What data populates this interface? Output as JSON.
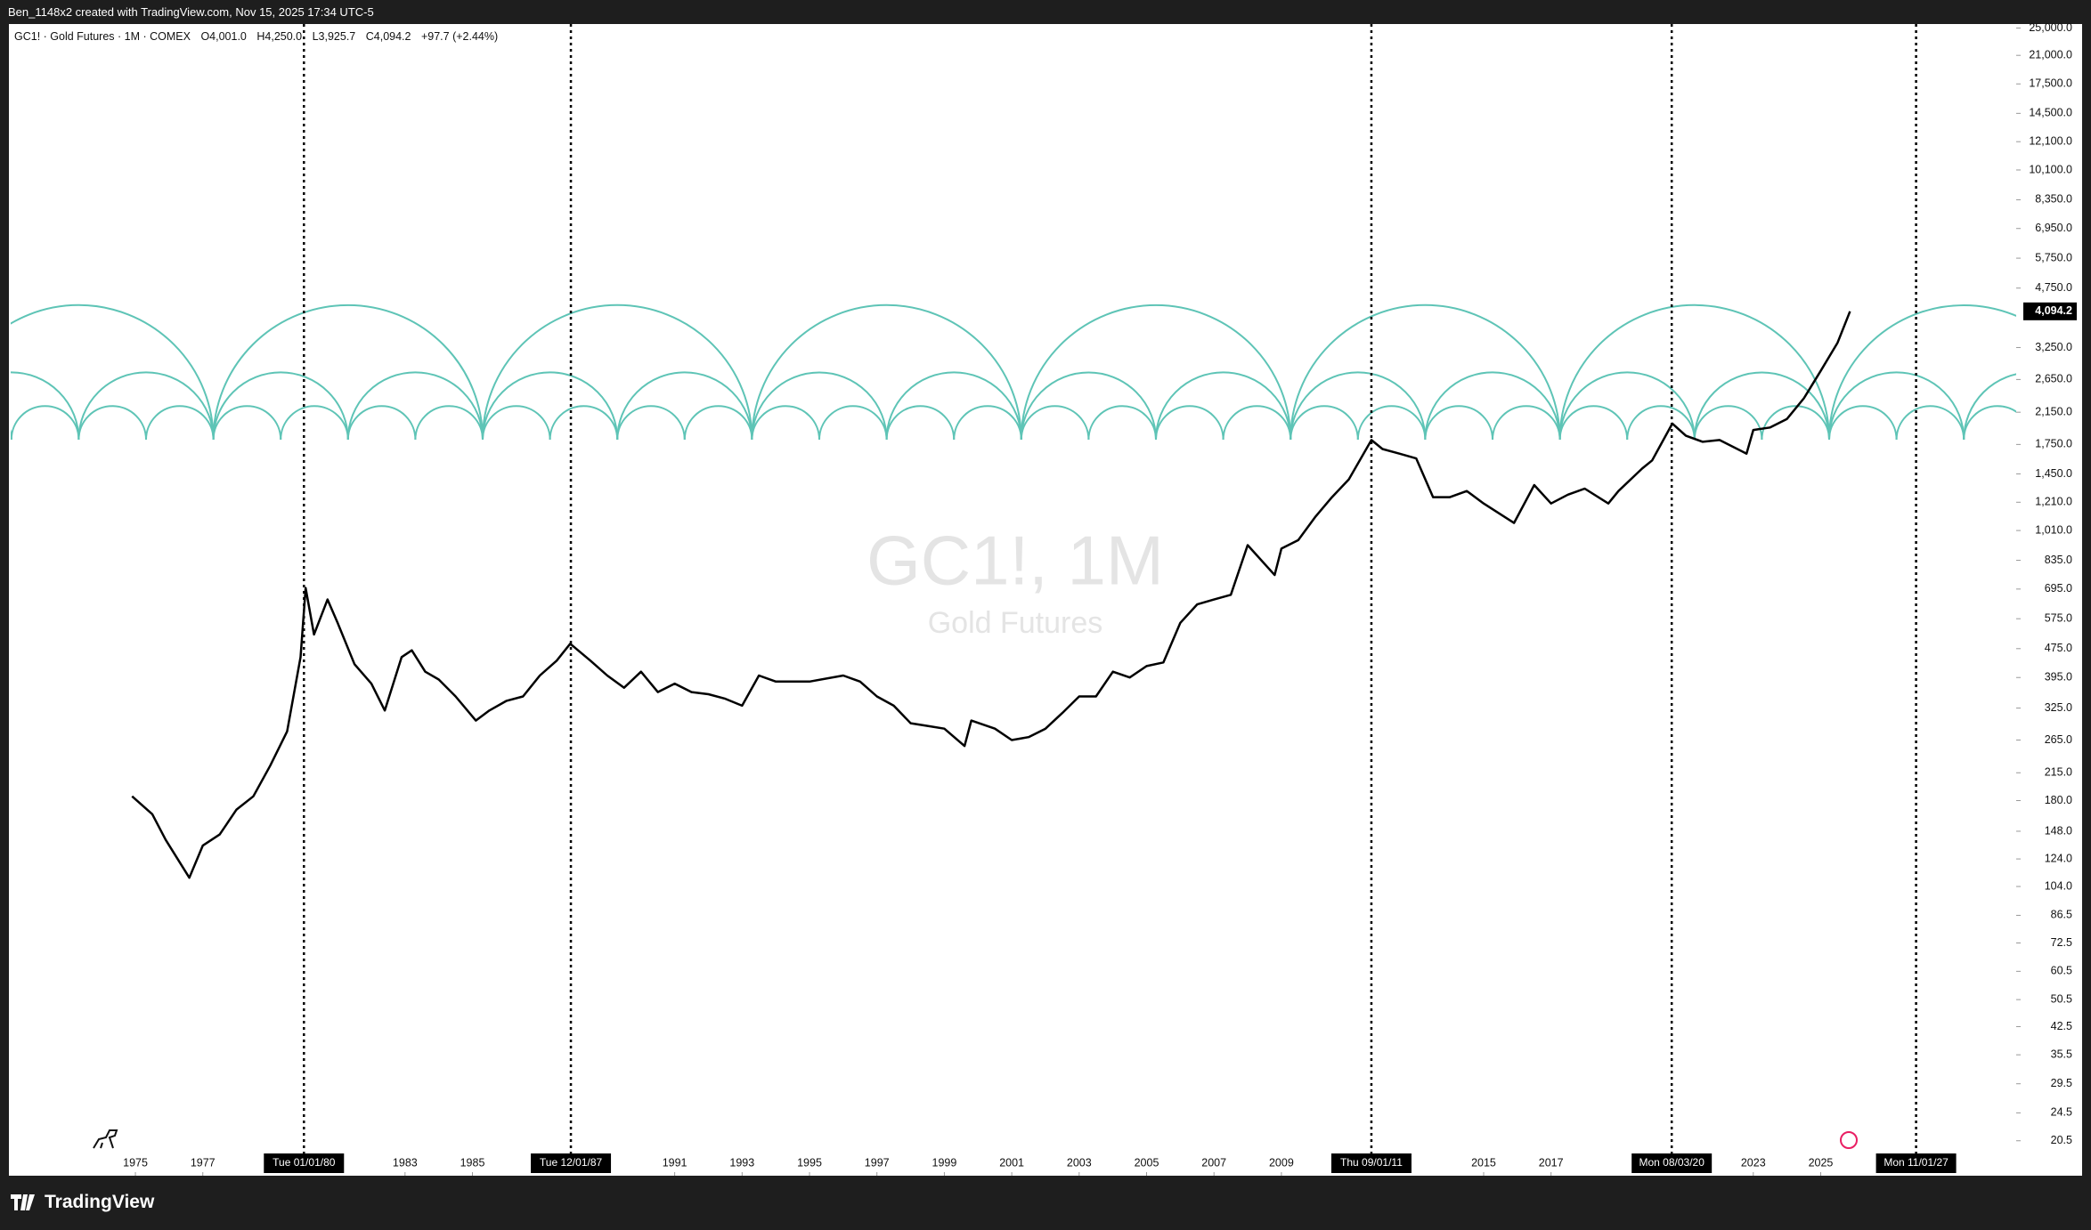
{
  "header": {
    "text": "Ben_1148x2 created with TradingView.com, Nov 15, 2025 17:34 UTC-5"
  },
  "legend": {
    "symbol": "GC1! · Gold Futures · 1M · COMEX",
    "open": "O4,001.0",
    "high": "H4,250.0",
    "low": "L3,925.7",
    "close": "C4,094.2",
    "change": "+97.7 (+2.44%)"
  },
  "footer": {
    "brand": "TradingView"
  },
  "chart_data": {
    "type": "line",
    "title": "GC1!, 1M",
    "subtitle": "Gold Futures",
    "log_scale": true,
    "color": "#000000",
    "x": [
      1974.9,
      1975.5,
      1975.9,
      1976.6,
      1977.0,
      1977.5,
      1978.0,
      1978.5,
      1979.0,
      1979.5,
      1979.9,
      1980.05,
      1980.3,
      1980.7,
      1981.0,
      1981.5,
      1982.0,
      1982.4,
      1982.9,
      1983.2,
      1983.6,
      1984.0,
      1984.5,
      1985.1,
      1985.5,
      1986.0,
      1986.5,
      1987.0,
      1987.5,
      1987.9,
      1988.5,
      1989.0,
      1989.5,
      1990.0,
      1990.5,
      1991.0,
      1991.5,
      1992.0,
      1992.5,
      1993.0,
      1993.5,
      1994.0,
      1995.0,
      1996.0,
      1996.5,
      1997.0,
      1997.5,
      1998.0,
      1998.5,
      1999.0,
      1999.6,
      1999.8,
      2000.5,
      2001.0,
      2001.5,
      2002.0,
      2002.5,
      2003.0,
      2003.5,
      2004.0,
      2004.5,
      2005.0,
      2005.5,
      2006.0,
      2006.5,
      2007.0,
      2007.5,
      2008.0,
      2008.8,
      2009.0,
      2009.5,
      2010.0,
      2010.5,
      2011.0,
      2011.67,
      2012.0,
      2012.5,
      2013.0,
      2013.5,
      2014.0,
      2014.5,
      2015.0,
      2015.9,
      2016.5,
      2017.0,
      2017.5,
      2018.0,
      2018.7,
      2019.0,
      2019.7,
      2020.0,
      2020.6,
      2021.0,
      2021.5,
      2022.0,
      2022.8,
      2023.0,
      2023.5,
      2024.0,
      2024.5,
      2025.0,
      2025.5,
      2025.87
    ],
    "values": [
      185,
      165,
      140,
      110,
      135,
      145,
      170,
      185,
      225,
      280,
      450,
      700,
      520,
      650,
      560,
      430,
      380,
      320,
      450,
      470,
      410,
      390,
      350,
      300,
      320,
      340,
      350,
      400,
      440,
      490,
      440,
      400,
      370,
      410,
      360,
      380,
      360,
      355,
      345,
      330,
      400,
      385,
      385,
      400,
      385,
      350,
      330,
      295,
      290,
      285,
      255,
      300,
      285,
      265,
      270,
      285,
      315,
      350,
      350,
      410,
      395,
      425,
      435,
      560,
      630,
      650,
      670,
      920,
      760,
      900,
      950,
      1100,
      1250,
      1400,
      1800,
      1700,
      1650,
      1600,
      1250,
      1250,
      1300,
      1200,
      1060,
      1350,
      1200,
      1270,
      1320,
      1200,
      1300,
      1500,
      1580,
      2000,
      1850,
      1780,
      1800,
      1650,
      1920,
      1950,
      2060,
      2350,
      2800,
      3350,
      4094.2
    ],
    "price_label": {
      "value": 4094.2,
      "label": "4,094.2"
    },
    "xlim": [
      1971.3,
      2030.8
    ],
    "xticks": [
      1975,
      1977,
      1983,
      1985,
      1991,
      1993,
      1995,
      1997,
      1999,
      2001,
      2003,
      2005,
      2007,
      2009,
      2015,
      2017,
      2023,
      2025
    ],
    "ylim": [
      16.4,
      25650
    ],
    "yticks": [
      {
        "value": 25000,
        "label": "25,000.0"
      },
      {
        "value": 21000,
        "label": "21,000.0"
      },
      {
        "value": 17500,
        "label": "17,500.0"
      },
      {
        "value": 14500,
        "label": "14,500.0"
      },
      {
        "value": 12100,
        "label": "12,100.0"
      },
      {
        "value": 10100,
        "label": "10,100.0"
      },
      {
        "value": 8350,
        "label": "8,350.0"
      },
      {
        "value": 6950,
        "label": "6,950.0"
      },
      {
        "value": 5750,
        "label": "5,750.0"
      },
      {
        "value": 4750,
        "label": "4,750.0"
      },
      {
        "value": 3250,
        "label": "3,250.0"
      },
      {
        "value": 2650,
        "label": "2,650.0"
      },
      {
        "value": 2150,
        "label": "2,150.0"
      },
      {
        "value": 1750,
        "label": "1,750.0"
      },
      {
        "value": 1450,
        "label": "1,450.0"
      },
      {
        "value": 1210,
        "label": "1,210.0"
      },
      {
        "value": 1010,
        "label": "1,010.0"
      },
      {
        "value": 835,
        "label": "835.0"
      },
      {
        "value": 695,
        "label": "695.0"
      },
      {
        "value": 575,
        "label": "575.0"
      },
      {
        "value": 475,
        "label": "475.0"
      },
      {
        "value": 395,
        "label": "395.0"
      },
      {
        "value": 325,
        "label": "325.0"
      },
      {
        "value": 265,
        "label": "265.0"
      },
      {
        "value": 215,
        "label": "215.0"
      },
      {
        "value": 180,
        "label": "180.0"
      },
      {
        "value": 148,
        "label": "148.0"
      },
      {
        "value": 124,
        "label": "124.0"
      },
      {
        "value": 104,
        "label": "104.0"
      },
      {
        "value": 86.5,
        "label": "86.5"
      },
      {
        "value": 72.5,
        "label": "72.5"
      },
      {
        "value": 60.5,
        "label": "60.5"
      },
      {
        "value": 50.5,
        "label": "50.5"
      },
      {
        "value": 42.5,
        "label": "42.5"
      },
      {
        "value": 35.5,
        "label": "35.5"
      },
      {
        "value": 29.5,
        "label": "29.5"
      },
      {
        "value": 24.5,
        "label": "24.5"
      },
      {
        "value": 20.5,
        "label": "20.5"
      }
    ],
    "markers": [
      {
        "value": 1980.0,
        "label": "Tue 01/01/80"
      },
      {
        "value": 1987.92,
        "label": "Tue 12/01/87"
      },
      {
        "value": 2011.67,
        "label": "Thu 09/01/11"
      },
      {
        "value": 2020.58,
        "label": "Mon 08/03/20"
      },
      {
        "value": 2027.83,
        "label": "Mon 11/01/27"
      }
    ]
  }
}
